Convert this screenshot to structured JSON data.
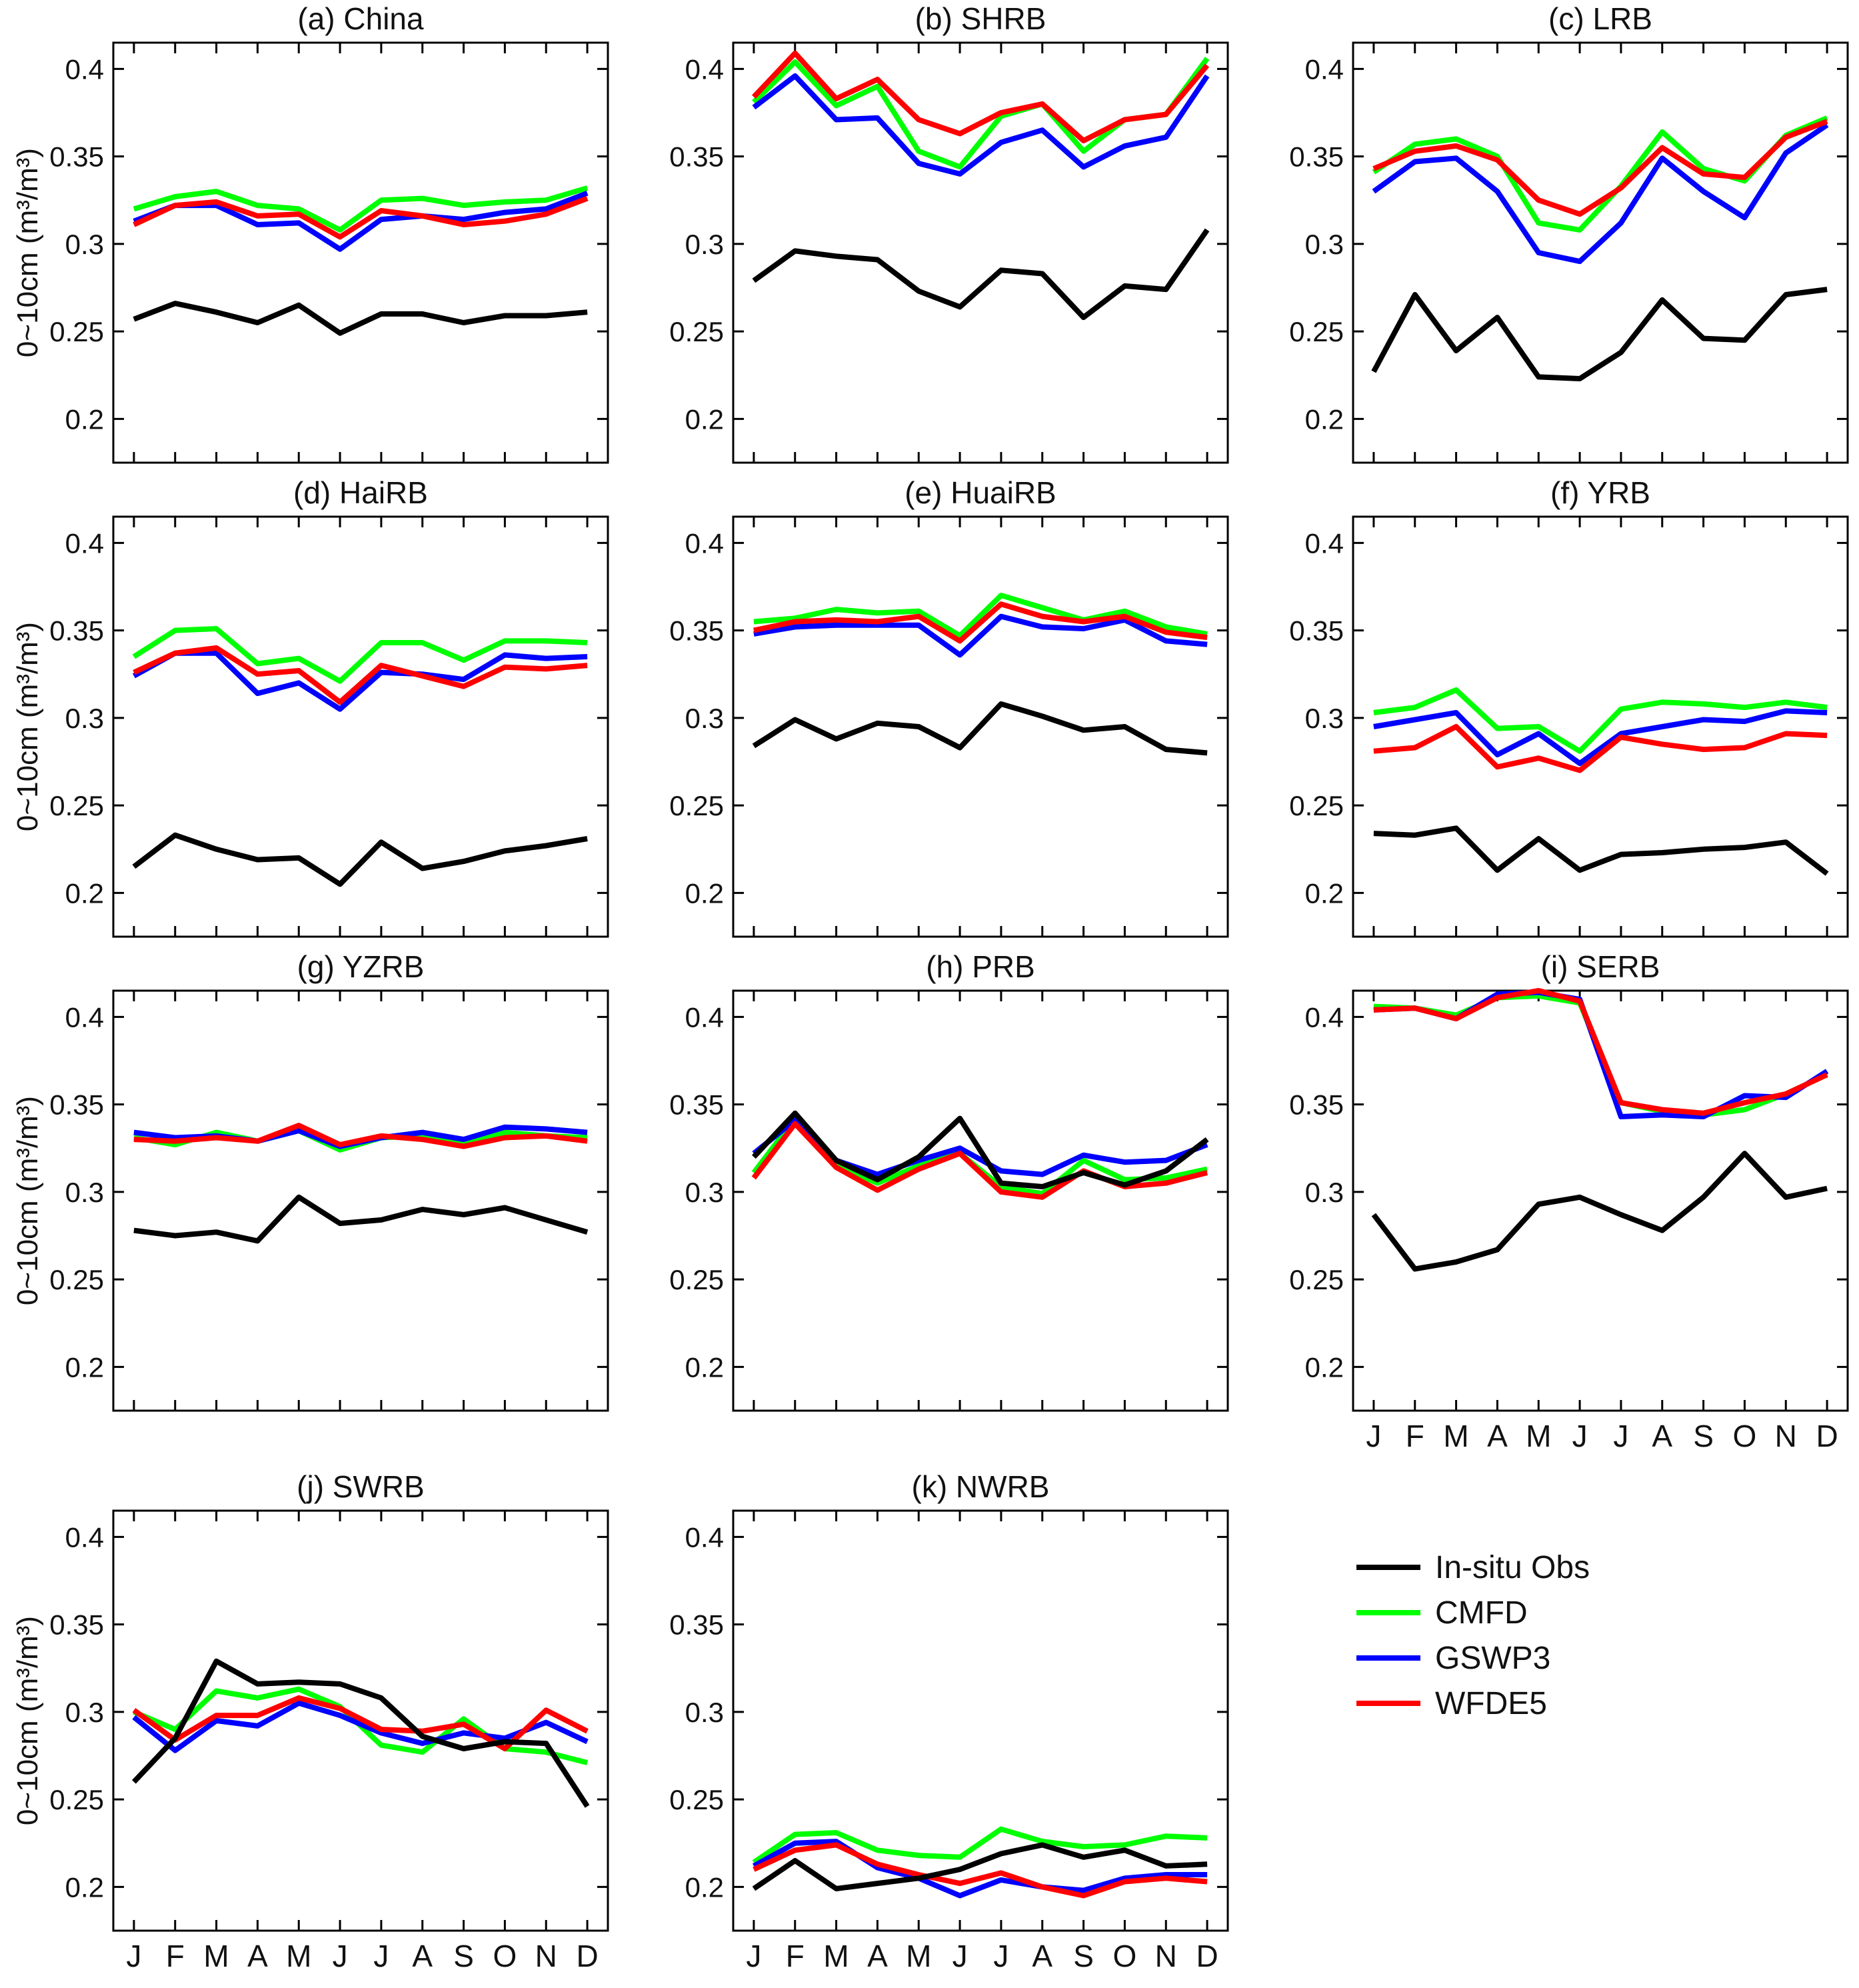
{
  "figure": {
    "ylabel": "0~10cm (m³/m³)",
    "x_tick_labels": [
      "J",
      "F",
      "M",
      "A",
      "M",
      "J",
      "J",
      "A",
      "S",
      "O",
      "N",
      "D"
    ],
    "y_ticks": [
      {
        "value": 0.2,
        "label": "0.2"
      },
      {
        "value": 0.25,
        "label": "0.25"
      },
      {
        "value": 0.3,
        "label": "0.3"
      },
      {
        "value": 0.35,
        "label": "0.35"
      },
      {
        "value": 0.4,
        "label": "0.4"
      }
    ],
    "ylim": [
      0.175,
      0.415
    ],
    "grid": false,
    "axis_color": "#000000",
    "background": "#ffffff"
  },
  "legend": {
    "items": [
      {
        "label": "In-situ Obs",
        "color": "#000000"
      },
      {
        "label": "CMFD",
        "color": "#00ff00"
      },
      {
        "label": "GSWP3",
        "color": "#0000ff"
      },
      {
        "label": "WFDE5",
        "color": "#ff0000"
      }
    ],
    "position": "bottom-right-cell"
  },
  "chart_data": [
    {
      "type": "line",
      "title": "(a) China",
      "show_x_labels": false,
      "show_ylabel": true,
      "categories": [
        "J",
        "F",
        "M",
        "A",
        "M",
        "J",
        "J",
        "A",
        "S",
        "O",
        "N",
        "D"
      ],
      "series": [
        {
          "name": "CMFD",
          "color": "#00ff00",
          "values": [
            0.32,
            0.327,
            0.33,
            0.322,
            0.32,
            0.308,
            0.325,
            0.326,
            0.322,
            0.324,
            0.325,
            0.332
          ]
        },
        {
          "name": "GSWP3",
          "color": "#0000ff",
          "values": [
            0.313,
            0.322,
            0.322,
            0.311,
            0.312,
            0.297,
            0.314,
            0.316,
            0.314,
            0.318,
            0.32,
            0.329
          ]
        },
        {
          "name": "WFDE5",
          "color": "#ff0000",
          "values": [
            0.311,
            0.322,
            0.324,
            0.316,
            0.317,
            0.304,
            0.319,
            0.316,
            0.311,
            0.313,
            0.317,
            0.326
          ]
        },
        {
          "name": "In-situ Obs",
          "color": "#000000",
          "values": [
            0.257,
            0.266,
            0.261,
            0.255,
            0.265,
            0.249,
            0.26,
            0.26,
            0.255,
            0.259,
            0.259,
            0.261
          ]
        }
      ]
    },
    {
      "type": "line",
      "title": "(b) SHRB",
      "show_x_labels": false,
      "show_ylabel": false,
      "categories": [
        "J",
        "F",
        "M",
        "A",
        "M",
        "J",
        "J",
        "A",
        "S",
        "O",
        "N",
        "D"
      ],
      "series": [
        {
          "name": "CMFD",
          "color": "#00ff00",
          "values": [
            0.381,
            0.404,
            0.379,
            0.39,
            0.353,
            0.344,
            0.373,
            0.38,
            0.353,
            0.371,
            0.374,
            0.406
          ]
        },
        {
          "name": "GSWP3",
          "color": "#0000ff",
          "values": [
            0.378,
            0.396,
            0.371,
            0.372,
            0.346,
            0.34,
            0.358,
            0.365,
            0.344,
            0.356,
            0.361,
            0.396
          ]
        },
        {
          "name": "WFDE5",
          "color": "#ff0000",
          "values": [
            0.384,
            0.409,
            0.383,
            0.394,
            0.371,
            0.363,
            0.375,
            0.38,
            0.359,
            0.371,
            0.374,
            0.402
          ]
        },
        {
          "name": "In-situ Obs",
          "color": "#000000",
          "values": [
            0.279,
            0.296,
            0.293,
            0.291,
            0.273,
            0.264,
            0.285,
            0.283,
            0.258,
            0.276,
            0.274,
            0.308
          ]
        }
      ]
    },
    {
      "type": "line",
      "title": "(c) LRB",
      "show_x_labels": false,
      "show_ylabel": false,
      "categories": [
        "J",
        "F",
        "M",
        "A",
        "M",
        "J",
        "J",
        "A",
        "S",
        "O",
        "N",
        "D"
      ],
      "series": [
        {
          "name": "CMFD",
          "color": "#00ff00",
          "values": [
            0.341,
            0.357,
            0.36,
            0.35,
            0.312,
            0.308,
            0.333,
            0.364,
            0.343,
            0.336,
            0.362,
            0.372
          ]
        },
        {
          "name": "GSWP3",
          "color": "#0000ff",
          "values": [
            0.33,
            0.347,
            0.349,
            0.33,
            0.295,
            0.29,
            0.312,
            0.349,
            0.33,
            0.315,
            0.352,
            0.368
          ]
        },
        {
          "name": "WFDE5",
          "color": "#ff0000",
          "values": [
            0.343,
            0.353,
            0.356,
            0.348,
            0.325,
            0.317,
            0.332,
            0.355,
            0.34,
            0.338,
            0.361,
            0.37
          ]
        },
        {
          "name": "In-situ Obs",
          "color": "#000000",
          "values": [
            0.227,
            0.271,
            0.239,
            0.258,
            0.224,
            0.223,
            0.238,
            0.268,
            0.246,
            0.245,
            0.271,
            0.274
          ]
        }
      ]
    },
    {
      "type": "line",
      "title": "(d) HaiRB",
      "show_x_labels": false,
      "show_ylabel": true,
      "categories": [
        "J",
        "F",
        "M",
        "A",
        "M",
        "J",
        "J",
        "A",
        "S",
        "O",
        "N",
        "D"
      ],
      "series": [
        {
          "name": "CMFD",
          "color": "#00ff00",
          "values": [
            0.335,
            0.35,
            0.351,
            0.331,
            0.334,
            0.321,
            0.343,
            0.343,
            0.333,
            0.344,
            0.344,
            0.343
          ]
        },
        {
          "name": "GSWP3",
          "color": "#0000ff",
          "values": [
            0.324,
            0.337,
            0.337,
            0.314,
            0.32,
            0.305,
            0.326,
            0.325,
            0.322,
            0.336,
            0.334,
            0.335
          ]
        },
        {
          "name": "WFDE5",
          "color": "#ff0000",
          "values": [
            0.326,
            0.337,
            0.34,
            0.325,
            0.327,
            0.309,
            0.33,
            0.324,
            0.318,
            0.329,
            0.328,
            0.33
          ]
        },
        {
          "name": "In-situ Obs",
          "color": "#000000",
          "values": [
            0.215,
            0.233,
            0.225,
            0.219,
            0.22,
            0.205,
            0.229,
            0.214,
            0.218,
            0.224,
            0.227,
            0.231
          ]
        }
      ]
    },
    {
      "type": "line",
      "title": "(e) HuaiRB",
      "show_x_labels": false,
      "show_ylabel": false,
      "categories": [
        "J",
        "F",
        "M",
        "A",
        "M",
        "J",
        "J",
        "A",
        "S",
        "O",
        "N",
        "D"
      ],
      "series": [
        {
          "name": "CMFD",
          "color": "#00ff00",
          "values": [
            0.355,
            0.357,
            0.362,
            0.36,
            0.361,
            0.347,
            0.37,
            0.363,
            0.356,
            0.361,
            0.352,
            0.348
          ]
        },
        {
          "name": "GSWP3",
          "color": "#0000ff",
          "values": [
            0.348,
            0.352,
            0.353,
            0.353,
            0.353,
            0.336,
            0.358,
            0.352,
            0.351,
            0.356,
            0.344,
            0.342
          ]
        },
        {
          "name": "WFDE5",
          "color": "#ff0000",
          "values": [
            0.35,
            0.355,
            0.356,
            0.355,
            0.358,
            0.344,
            0.365,
            0.358,
            0.355,
            0.358,
            0.349,
            0.346
          ]
        },
        {
          "name": "In-situ Obs",
          "color": "#000000",
          "values": [
            0.284,
            0.299,
            0.288,
            0.297,
            0.295,
            0.283,
            0.308,
            0.301,
            0.293,
            0.295,
            0.282,
            0.28
          ]
        }
      ]
    },
    {
      "type": "line",
      "title": "(f) YRB",
      "show_x_labels": false,
      "show_ylabel": false,
      "categories": [
        "J",
        "F",
        "M",
        "A",
        "M",
        "J",
        "J",
        "A",
        "S",
        "O",
        "N",
        "D"
      ],
      "series": [
        {
          "name": "CMFD",
          "color": "#00ff00",
          "values": [
            0.303,
            0.306,
            0.316,
            0.294,
            0.295,
            0.281,
            0.305,
            0.309,
            0.308,
            0.306,
            0.309,
            0.306
          ]
        },
        {
          "name": "GSWP3",
          "color": "#0000ff",
          "values": [
            0.295,
            0.299,
            0.303,
            0.279,
            0.291,
            0.274,
            0.291,
            0.295,
            0.299,
            0.298,
            0.304,
            0.303
          ]
        },
        {
          "name": "WFDE5",
          "color": "#ff0000",
          "values": [
            0.281,
            0.283,
            0.295,
            0.272,
            0.277,
            0.27,
            0.289,
            0.285,
            0.282,
            0.283,
            0.291,
            0.29
          ]
        },
        {
          "name": "In-situ Obs",
          "color": "#000000",
          "values": [
            0.234,
            0.233,
            0.237,
            0.213,
            0.231,
            0.213,
            0.222,
            0.223,
            0.225,
            0.226,
            0.229,
            0.211
          ]
        }
      ]
    },
    {
      "type": "line",
      "title": "(g) YZRB",
      "show_x_labels": false,
      "show_ylabel": true,
      "categories": [
        "J",
        "F",
        "M",
        "A",
        "M",
        "J",
        "J",
        "A",
        "S",
        "O",
        "N",
        "D"
      ],
      "series": [
        {
          "name": "CMFD",
          "color": "#00ff00",
          "values": [
            0.331,
            0.327,
            0.334,
            0.329,
            0.335,
            0.324,
            0.331,
            0.332,
            0.328,
            0.334,
            0.332,
            0.331
          ]
        },
        {
          "name": "GSWP3",
          "color": "#0000ff",
          "values": [
            0.334,
            0.331,
            0.332,
            0.329,
            0.335,
            0.326,
            0.331,
            0.334,
            0.33,
            0.337,
            0.336,
            0.334
          ]
        },
        {
          "name": "WFDE5",
          "color": "#ff0000",
          "values": [
            0.33,
            0.329,
            0.331,
            0.329,
            0.338,
            0.327,
            0.332,
            0.33,
            0.326,
            0.331,
            0.332,
            0.329
          ]
        },
        {
          "name": "In-situ Obs",
          "color": "#000000",
          "values": [
            0.278,
            0.275,
            0.277,
            0.272,
            0.297,
            0.282,
            0.284,
            0.29,
            0.287,
            0.291,
            0.284,
            0.277
          ]
        }
      ]
    },
    {
      "type": "line",
      "title": "(h) PRB",
      "show_x_labels": false,
      "show_ylabel": false,
      "categories": [
        "J",
        "F",
        "M",
        "A",
        "M",
        "J",
        "J",
        "A",
        "S",
        "O",
        "N",
        "D"
      ],
      "series": [
        {
          "name": "CMFD",
          "color": "#00ff00",
          "values": [
            0.311,
            0.342,
            0.315,
            0.305,
            0.315,
            0.322,
            0.303,
            0.299,
            0.318,
            0.307,
            0.308,
            0.313
          ]
        },
        {
          "name": "GSWP3",
          "color": "#0000ff",
          "values": [
            0.322,
            0.341,
            0.318,
            0.31,
            0.318,
            0.325,
            0.312,
            0.31,
            0.321,
            0.317,
            0.318,
            0.327
          ]
        },
        {
          "name": "WFDE5",
          "color": "#ff0000",
          "values": [
            0.308,
            0.339,
            0.314,
            0.301,
            0.313,
            0.322,
            0.3,
            0.297,
            0.312,
            0.303,
            0.305,
            0.311
          ]
        },
        {
          "name": "In-situ Obs",
          "color": "#000000",
          "values": [
            0.32,
            0.345,
            0.318,
            0.307,
            0.32,
            0.342,
            0.305,
            0.303,
            0.311,
            0.304,
            0.312,
            0.33
          ]
        }
      ]
    },
    {
      "type": "line",
      "title": "(i) SERB",
      "show_x_labels": true,
      "show_ylabel": false,
      "categories": [
        "J",
        "F",
        "M",
        "A",
        "M",
        "J",
        "J",
        "A",
        "S",
        "O",
        "N",
        "D"
      ],
      "series": [
        {
          "name": "CMFD",
          "color": "#00ff00",
          "values": [
            0.406,
            0.405,
            0.401,
            0.411,
            0.412,
            0.408,
            0.351,
            0.346,
            0.344,
            0.347,
            0.356,
            0.367
          ]
        },
        {
          "name": "GSWP3",
          "color": "#0000ff",
          "values": [
            0.404,
            0.405,
            0.399,
            0.413,
            0.414,
            0.41,
            0.343,
            0.344,
            0.343,
            0.355,
            0.354,
            0.369
          ]
        },
        {
          "name": "WFDE5",
          "color": "#ff0000",
          "values": [
            0.404,
            0.405,
            0.399,
            0.411,
            0.415,
            0.409,
            0.351,
            0.347,
            0.345,
            0.351,
            0.356,
            0.367
          ]
        },
        {
          "name": "In-situ Obs",
          "color": "#000000",
          "values": [
            0.287,
            0.256,
            0.26,
            0.267,
            0.293,
            0.297,
            0.287,
            0.278,
            0.297,
            0.322,
            0.297,
            0.302
          ]
        }
      ]
    },
    {
      "type": "line",
      "title": "(j) SWRB",
      "show_x_labels": true,
      "show_ylabel": true,
      "categories": [
        "J",
        "F",
        "M",
        "A",
        "M",
        "J",
        "J",
        "A",
        "S",
        "O",
        "N",
        "D"
      ],
      "series": [
        {
          "name": "CMFD",
          "color": "#00ff00",
          "values": [
            0.3,
            0.29,
            0.312,
            0.308,
            0.313,
            0.303,
            0.281,
            0.277,
            0.296,
            0.279,
            0.277,
            0.271
          ]
        },
        {
          "name": "GSWP3",
          "color": "#0000ff",
          "values": [
            0.297,
            0.278,
            0.295,
            0.292,
            0.305,
            0.298,
            0.288,
            0.282,
            0.288,
            0.285,
            0.294,
            0.283
          ]
        },
        {
          "name": "WFDE5",
          "color": "#ff0000",
          "values": [
            0.301,
            0.284,
            0.298,
            0.298,
            0.308,
            0.302,
            0.29,
            0.289,
            0.293,
            0.279,
            0.301,
            0.289
          ]
        },
        {
          "name": "In-situ Obs",
          "color": "#000000",
          "values": [
            0.26,
            0.285,
            0.329,
            0.316,
            0.317,
            0.316,
            0.308,
            0.286,
            0.279,
            0.283,
            0.282,
            0.246
          ]
        }
      ]
    },
    {
      "type": "line",
      "title": "(k) NWRB",
      "show_x_labels": true,
      "show_ylabel": false,
      "categories": [
        "J",
        "F",
        "M",
        "A",
        "M",
        "J",
        "J",
        "A",
        "S",
        "O",
        "N",
        "D"
      ],
      "series": [
        {
          "name": "CMFD",
          "color": "#00ff00",
          "values": [
            0.214,
            0.23,
            0.231,
            0.221,
            0.218,
            0.217,
            0.233,
            0.226,
            0.223,
            0.224,
            0.229,
            0.228
          ]
        },
        {
          "name": "GSWP3",
          "color": "#0000ff",
          "values": [
            0.212,
            0.225,
            0.226,
            0.211,
            0.205,
            0.195,
            0.204,
            0.2,
            0.198,
            0.205,
            0.207,
            0.207
          ]
        },
        {
          "name": "WFDE5",
          "color": "#ff0000",
          "values": [
            0.21,
            0.221,
            0.224,
            0.213,
            0.207,
            0.202,
            0.208,
            0.2,
            0.195,
            0.203,
            0.205,
            0.203
          ]
        },
        {
          "name": "In-situ Obs",
          "color": "#000000",
          "values": [
            0.199,
            0.215,
            0.199,
            0.202,
            0.205,
            0.21,
            0.219,
            0.224,
            0.217,
            0.221,
            0.212,
            0.213
          ]
        }
      ]
    }
  ]
}
